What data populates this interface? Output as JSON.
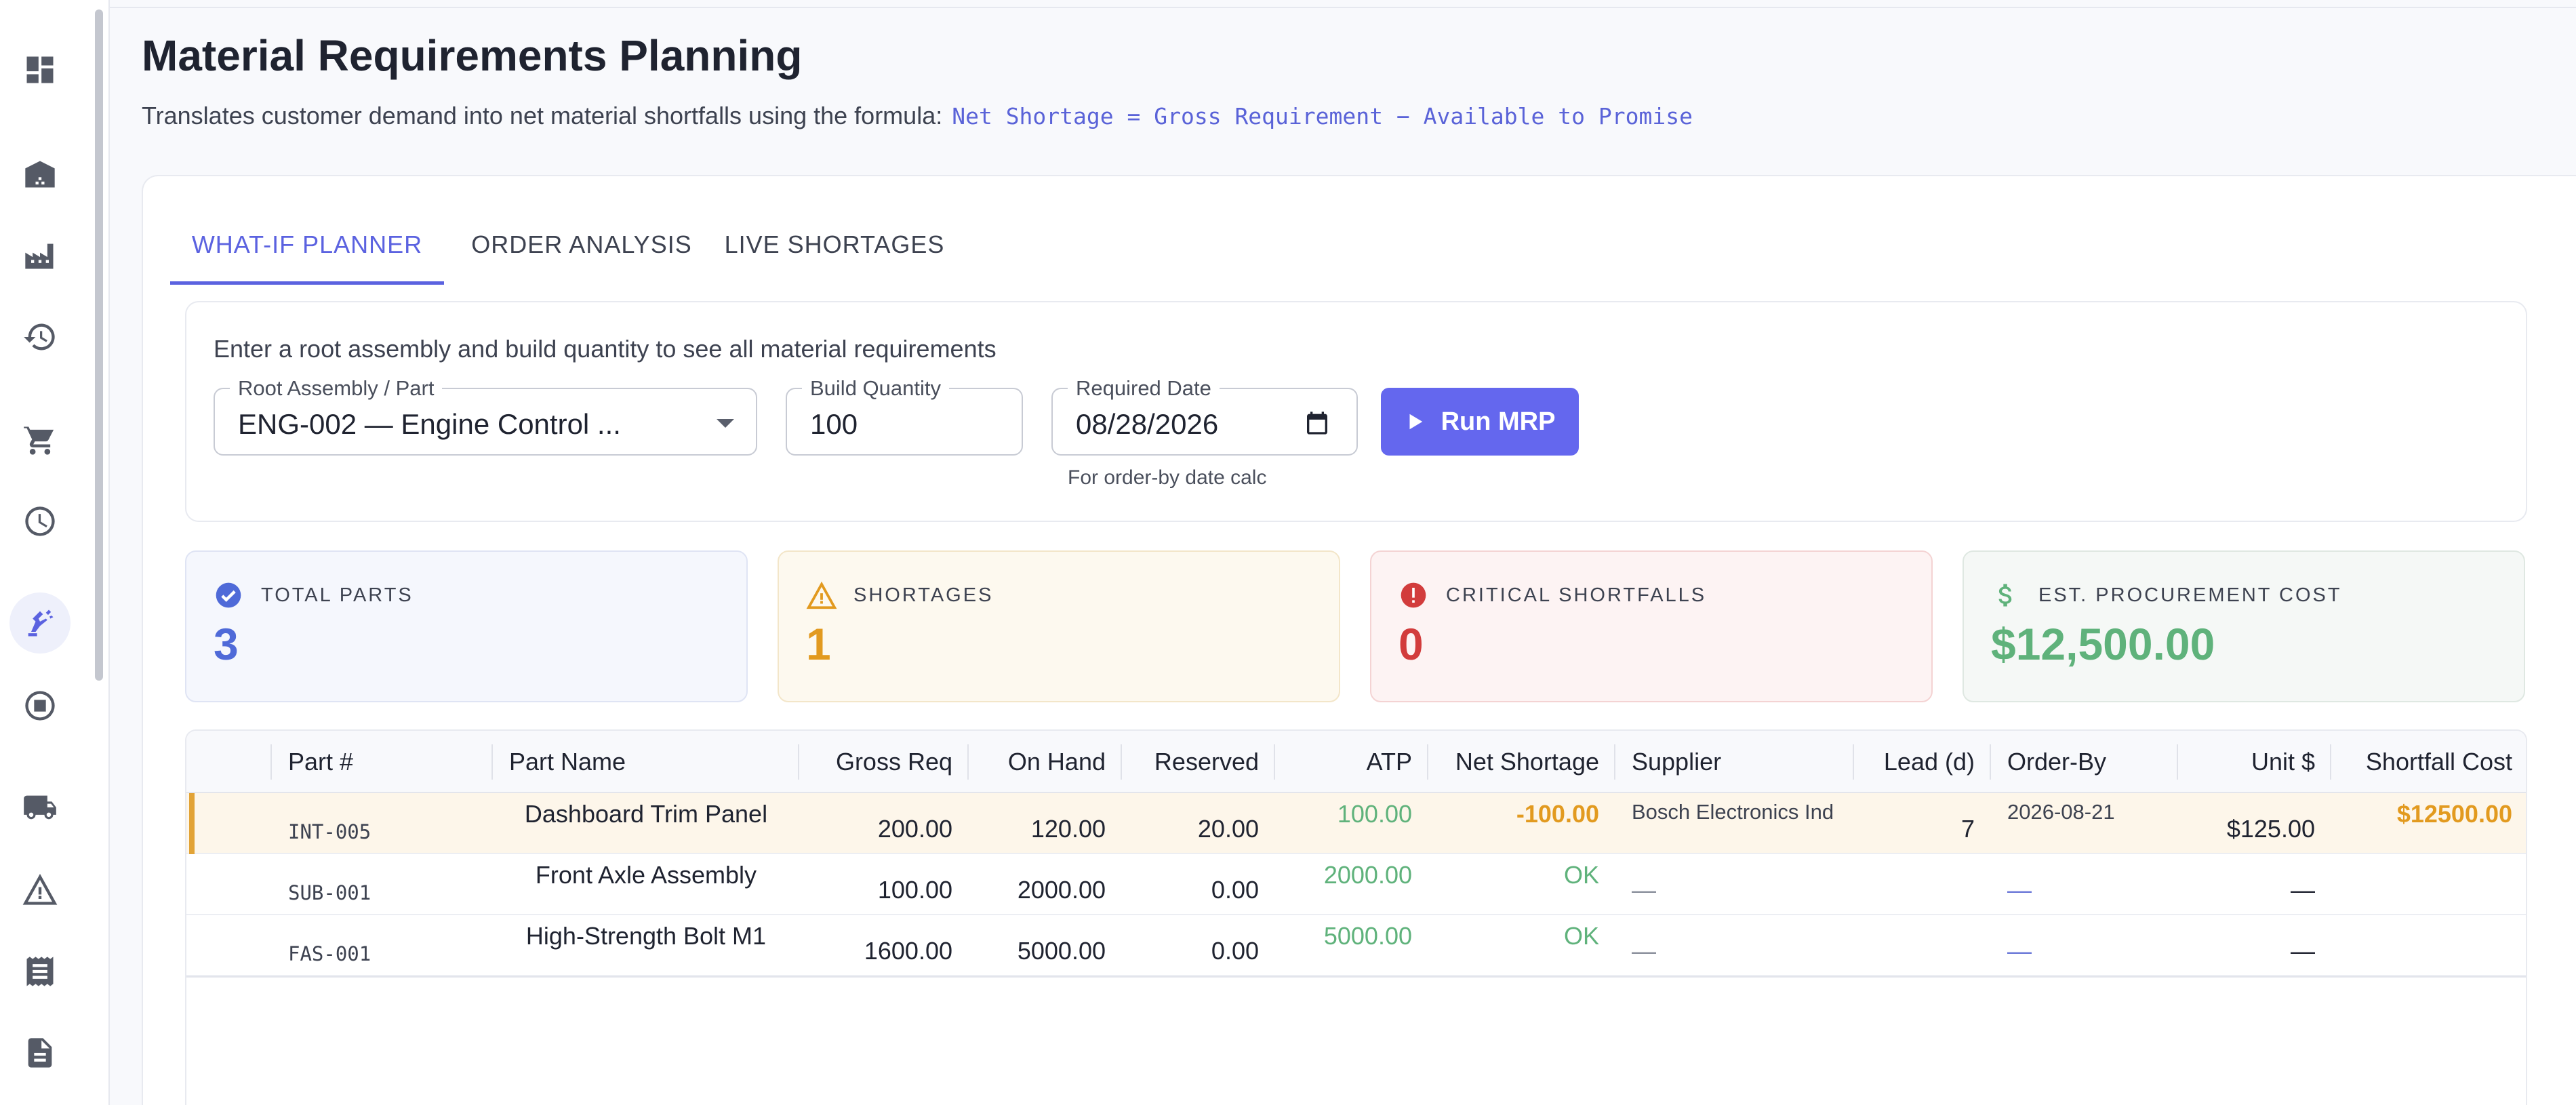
{
  "header": {
    "title": "Material Requirements Planning",
    "description": "Translates customer demand into net material shortfalls using the formula:",
    "formula": "Net Shortage = Gross Requirement − Available to Promise"
  },
  "sidebar": {
    "items": [
      {
        "icon": "dashboard-icon"
      },
      {
        "icon": "warehouse-icon"
      },
      {
        "icon": "factory-icon"
      },
      {
        "icon": "history-icon"
      },
      {
        "icon": "cart-icon"
      },
      {
        "icon": "clock-icon"
      },
      {
        "icon": "robot-arm-icon",
        "active": true
      },
      {
        "icon": "stop-circle-icon"
      },
      {
        "icon": "truck-icon"
      },
      {
        "icon": "warning-icon"
      },
      {
        "icon": "receipt-icon"
      },
      {
        "icon": "document-icon"
      }
    ]
  },
  "tabs": [
    {
      "label": "WHAT-IF PLANNER",
      "active": true
    },
    {
      "label": "ORDER ANALYSIS"
    },
    {
      "label": "LIVE SHORTAGES"
    }
  ],
  "planner": {
    "intro": "Enter a root assembly and build quantity to see all material requirements",
    "root_label": "Root Assembly / Part",
    "root_value": "ENG-002 — Engine Control ...",
    "qty_label": "Build Quantity",
    "qty_value": "100",
    "date_label": "Required Date",
    "date_value": "08/28/2026",
    "date_helper": "For order-by date calc",
    "run_label": "Run MRP"
  },
  "stats": [
    {
      "label": "TOTAL PARTS",
      "value": "3",
      "icon": "check-circle-icon",
      "color": "#4f6ad8"
    },
    {
      "label": "SHORTAGES",
      "value": "1",
      "icon": "warning-icon",
      "color": "#e29a1f"
    },
    {
      "label": "CRITICAL SHORTFALLS",
      "value": "0",
      "icon": "error-icon",
      "color": "#d23c3c"
    },
    {
      "label": "EST. PROCUREMENT COST",
      "value": "$12,500.00",
      "icon": "dollar-icon",
      "color": "#5fb27b"
    }
  ],
  "table": {
    "headers": {
      "part_no": "Part #",
      "part_name": "Part Name",
      "gross": "Gross Req",
      "on_hand": "On Hand",
      "reserved": "Reserved",
      "atp": "ATP",
      "net": "Net Shortage",
      "supplier": "Supplier",
      "lead": "Lead (d)",
      "order_by": "Order-By",
      "unit": "Unit $",
      "cost": "Shortfall Cost"
    },
    "rows": [
      {
        "part_no": "INT-005",
        "part_name": "Dashboard Trim Panel",
        "gross": "200.00",
        "on_hand": "120.00",
        "reserved": "20.00",
        "atp": "100.00",
        "net": "-100.00",
        "supplier": "Bosch Electronics Ind",
        "lead": "7",
        "order_by": "2026-08-21",
        "unit": "$125.00",
        "cost": "$12500.00"
      },
      {
        "part_no": "SUB-001",
        "part_name": "Front Axle Assembly",
        "gross": "100.00",
        "on_hand": "2000.00",
        "reserved": "0.00",
        "atp": "2000.00",
        "net": "OK",
        "supplier": "—",
        "lead": "",
        "order_by": "—",
        "unit": "—",
        "cost": ""
      },
      {
        "part_no": "FAS-001",
        "part_name": "High-Strength Bolt M1",
        "gross": "1600.00",
        "on_hand": "5000.00",
        "reserved": "0.00",
        "atp": "5000.00",
        "net": "OK",
        "supplier": "—",
        "lead": "",
        "order_by": "—",
        "unit": "—",
        "cost": ""
      }
    ]
  }
}
